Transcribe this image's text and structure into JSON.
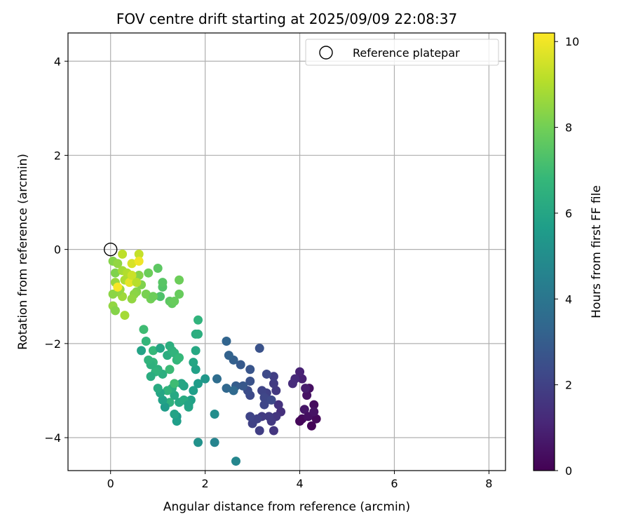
{
  "chart_data": {
    "type": "scatter",
    "title": "FOV centre drift starting at 2025/09/09 22:08:37",
    "xlabel": "Angular distance from reference (arcmin)",
    "ylabel": "Rotation from reference (arcmin)",
    "xlim": [
      -0.9,
      8.35
    ],
    "ylim": [
      -4.7,
      4.6
    ],
    "xticks": [
      0,
      2,
      4,
      6,
      8
    ],
    "yticks": [
      -4,
      -2,
      0,
      2,
      4
    ],
    "grid": true,
    "legend": {
      "label": "Reference platepar",
      "placement": "top-right",
      "marker": "hollow-circle"
    },
    "reference_point": {
      "x": 0,
      "y": 0
    },
    "colorbar": {
      "label": "Hours from first FF file",
      "colormap": "viridis",
      "range": [
        0,
        10.2
      ],
      "ticks": [
        0,
        2,
        4,
        6,
        8,
        10
      ]
    },
    "colormap_stops": [
      "#440154",
      "#482878",
      "#3e4989",
      "#31688e",
      "#26828e",
      "#1f9e89",
      "#35b779",
      "#6ece58",
      "#b5de2b",
      "#fde725"
    ],
    "series": [
      {
        "points": [
          [
            4.25,
            -3.75,
            0.1
          ],
          [
            4.35,
            -3.6,
            0.2
          ],
          [
            4.3,
            -3.3,
            0.3
          ],
          [
            4.2,
            -2.95,
            0.4
          ],
          [
            4.15,
            -3.1,
            0.5
          ],
          [
            4.1,
            -3.4,
            0.6
          ],
          [
            4.05,
            -3.6,
            0.3
          ],
          [
            4.0,
            -3.65,
            0.2
          ],
          [
            4.18,
            -3.55,
            0.4
          ],
          [
            4.3,
            -3.45,
            0.5
          ],
          [
            4.12,
            -2.95,
            0.8
          ],
          [
            4.05,
            -2.75,
            0.9
          ],
          [
            4.0,
            -2.6,
            1.0
          ],
          [
            3.9,
            -2.75,
            1.2
          ],
          [
            3.85,
            -2.85,
            1.3
          ],
          [
            3.6,
            -3.45,
            1.4
          ],
          [
            3.55,
            -3.3,
            1.5
          ],
          [
            3.5,
            -3.55,
            1.6
          ],
          [
            3.45,
            -3.85,
            1.6
          ],
          [
            3.4,
            -3.65,
            1.7
          ],
          [
            3.35,
            -3.55,
            1.8
          ],
          [
            3.2,
            -3.55,
            1.8
          ],
          [
            3.15,
            -3.85,
            1.9
          ],
          [
            3.1,
            -3.6,
            2.0
          ],
          [
            3.0,
            -3.7,
            2.0
          ],
          [
            2.95,
            -3.55,
            2.1
          ],
          [
            3.5,
            -3.0,
            1.7
          ],
          [
            3.45,
            -2.85,
            1.8
          ],
          [
            3.45,
            -2.7,
            1.9
          ],
          [
            3.3,
            -3.05,
            2.0
          ],
          [
            3.2,
            -3.0,
            2.1
          ],
          [
            3.25,
            -3.15,
            2.2
          ],
          [
            3.25,
            -3.3,
            2.2
          ],
          [
            3.3,
            -2.65,
            2.3
          ],
          [
            3.4,
            -3.2,
            2.3
          ],
          [
            3.15,
            -2.1,
            2.6
          ],
          [
            2.95,
            -3.1,
            2.3
          ],
          [
            2.9,
            -3.0,
            2.4
          ],
          [
            2.95,
            -2.8,
            2.6
          ],
          [
            2.95,
            -2.55,
            2.7
          ],
          [
            2.8,
            -2.9,
            2.8
          ],
          [
            2.75,
            -2.45,
            2.9
          ],
          [
            2.65,
            -2.9,
            3.0
          ],
          [
            2.6,
            -2.35,
            3.1
          ],
          [
            2.5,
            -2.25,
            3.2
          ],
          [
            2.45,
            -1.95,
            3.3
          ],
          [
            2.45,
            -2.95,
            3.4
          ],
          [
            2.25,
            -2.75,
            3.6
          ],
          [
            2.6,
            -3.0,
            3.5
          ],
          [
            2.2,
            -4.1,
            4.6
          ],
          [
            2.0,
            -2.75,
            5.4
          ],
          [
            1.85,
            -2.85,
            5.6
          ],
          [
            1.8,
            -2.55,
            5.8
          ],
          [
            1.75,
            -2.4,
            6.0
          ],
          [
            1.8,
            -2.15,
            6.1
          ],
          [
            1.8,
            -1.8,
            6.3
          ],
          [
            1.85,
            -1.8,
            6.4
          ],
          [
            1.85,
            -1.5,
            6.6
          ],
          [
            1.75,
            -3.0,
            5.7
          ],
          [
            1.7,
            -3.2,
            5.8
          ],
          [
            1.55,
            -2.9,
            5.9
          ],
          [
            1.5,
            -2.85,
            6.0
          ],
          [
            1.45,
            -3.25,
            6.1
          ],
          [
            1.4,
            -3.55,
            5.5
          ],
          [
            1.4,
            -3.65,
            5.7
          ],
          [
            1.35,
            -3.5,
            5.9
          ],
          [
            1.35,
            -3.1,
            6.1
          ],
          [
            1.3,
            -2.95,
            6.3
          ],
          [
            1.25,
            -3.25,
            6.5
          ],
          [
            1.2,
            -3.0,
            6.6
          ],
          [
            1.15,
            -3.35,
            5.6
          ],
          [
            1.1,
            -3.2,
            5.8
          ],
          [
            1.05,
            -3.05,
            6.0
          ],
          [
            1.0,
            -2.95,
            6.2
          ],
          [
            1.1,
            -2.65,
            6.4
          ],
          [
            1.0,
            -2.55,
            6.5
          ],
          [
            0.95,
            -2.6,
            6.6
          ],
          [
            0.9,
            -2.4,
            6.7
          ],
          [
            0.85,
            -2.7,
            6.3
          ],
          [
            0.85,
            -2.45,
            6.5
          ],
          [
            0.8,
            -2.35,
            6.6
          ],
          [
            0.9,
            -2.15,
            6.8
          ],
          [
            0.75,
            -1.95,
            6.7
          ],
          [
            0.7,
            -1.7,
            7.0
          ],
          [
            0.65,
            -2.15,
            5.9
          ],
          [
            1.05,
            -2.1,
            6.0
          ],
          [
            1.2,
            -2.25,
            6.3
          ],
          [
            1.25,
            -2.05,
            6.4
          ],
          [
            1.3,
            -2.15,
            6.5
          ],
          [
            1.35,
            -2.2,
            6.6
          ],
          [
            1.4,
            -2.35,
            6.7
          ],
          [
            1.45,
            -2.3,
            6.8
          ],
          [
            1.25,
            -2.55,
            6.9
          ],
          [
            1.35,
            -2.85,
            7.0
          ],
          [
            1.55,
            -3.2,
            6.2
          ],
          [
            1.65,
            -3.35,
            6.0
          ],
          [
            1.85,
            -4.1,
            5.2
          ],
          [
            2.2,
            -3.5,
            5.0
          ],
          [
            2.65,
            -4.5,
            4.7
          ],
          [
            1.65,
            -3.3,
            5.9
          ],
          [
            1.05,
            -1.0,
            7.3
          ],
          [
            1.1,
            -0.8,
            7.4
          ],
          [
            1.1,
            -0.7,
            7.5
          ],
          [
            1.0,
            -0.4,
            7.6
          ],
          [
            1.25,
            -1.1,
            7.6
          ],
          [
            1.3,
            -1.15,
            7.7
          ],
          [
            1.35,
            -1.1,
            7.8
          ],
          [
            1.45,
            -0.95,
            7.8
          ],
          [
            1.45,
            -0.65,
            7.9
          ],
          [
            0.8,
            -0.5,
            7.9
          ],
          [
            0.85,
            -1.05,
            8.0
          ],
          [
            0.75,
            -0.95,
            8.1
          ],
          [
            0.65,
            -0.75,
            8.2
          ],
          [
            0.6,
            -0.55,
            8.3
          ],
          [
            0.9,
            -1.0,
            7.9
          ],
          [
            0.55,
            -0.9,
            8.3
          ],
          [
            0.5,
            -0.95,
            8.4
          ],
          [
            0.45,
            -1.05,
            8.5
          ],
          [
            0.3,
            -1.4,
            8.8
          ],
          [
            0.25,
            -1.0,
            8.7
          ],
          [
            0.2,
            -0.85,
            8.6
          ],
          [
            0.15,
            -0.9,
            8.5
          ],
          [
            0.1,
            -0.7,
            8.6
          ],
          [
            0.05,
            -0.95,
            8.4
          ],
          [
            0.05,
            -1.2,
            8.5
          ],
          [
            0.1,
            -1.3,
            8.3
          ],
          [
            0.1,
            -0.5,
            8.2
          ],
          [
            0.05,
            -0.25,
            8.3
          ],
          [
            0.15,
            -0.3,
            8.5
          ],
          [
            0.25,
            -0.45,
            8.8
          ],
          [
            0.3,
            -0.65,
            8.9
          ],
          [
            0.35,
            -0.5,
            9.0
          ],
          [
            0.25,
            -0.1,
            9.2
          ],
          [
            0.6,
            -0.1,
            9.3
          ],
          [
            0.45,
            -0.3,
            9.6
          ],
          [
            0.6,
            -0.25,
            10.0
          ],
          [
            0.4,
            -0.7,
            9.8
          ],
          [
            0.15,
            -0.8,
            10.1
          ],
          [
            0.45,
            -0.55,
            9.4
          ],
          [
            0.55,
            -0.7,
            9.1
          ]
        ]
      }
    ]
  }
}
